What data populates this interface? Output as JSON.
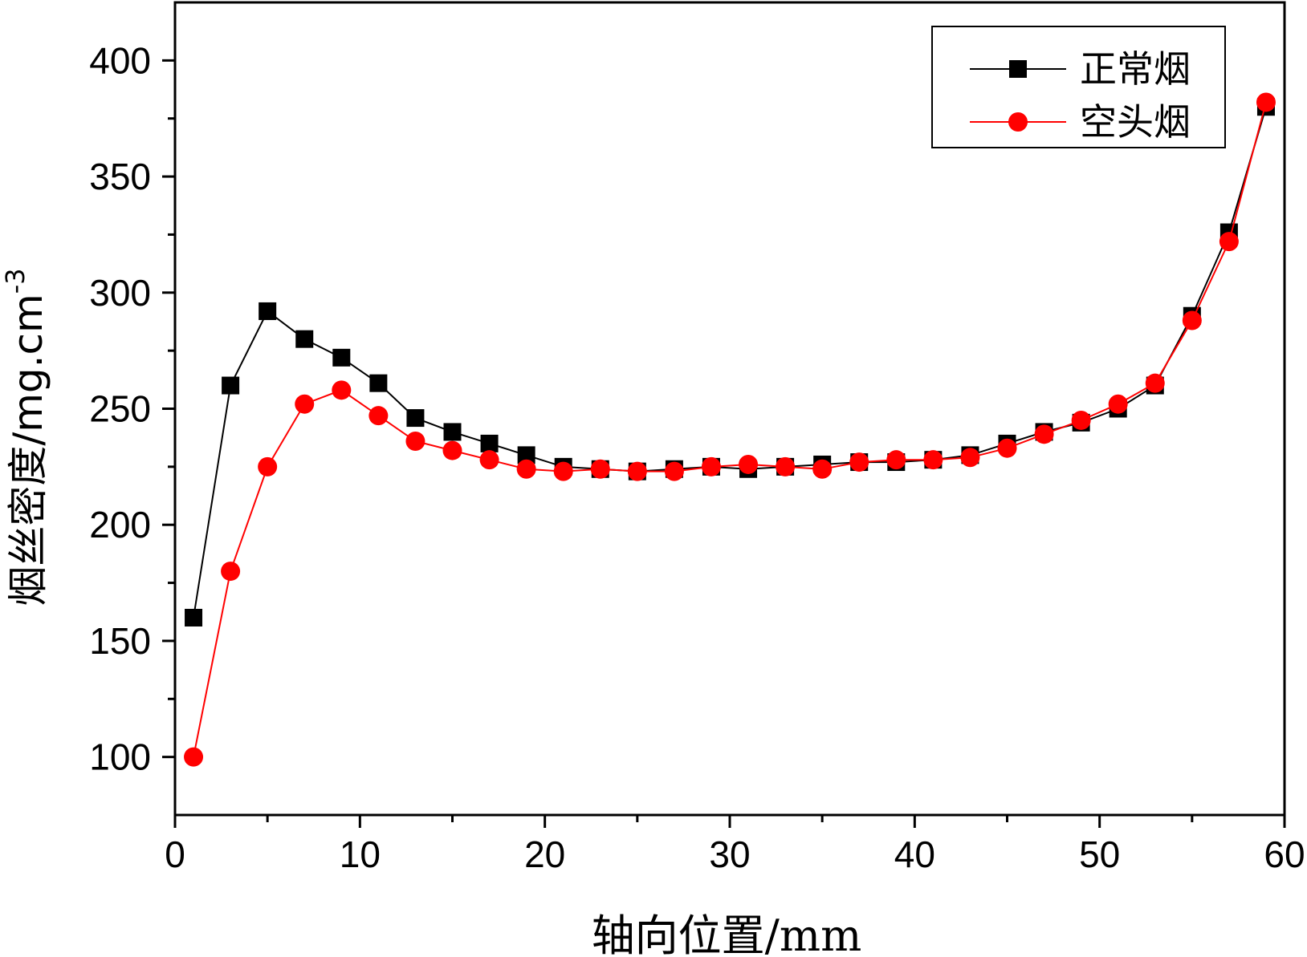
{
  "chart_data": {
    "type": "line",
    "title": "",
    "xlabel": "轴向位置/mm",
    "ylabel": "烟丝密度/mg.cm",
    "ylabel_superscript": "-3",
    "xlim": [
      0,
      60
    ],
    "ylim": [
      75,
      425
    ],
    "x_ticks": [
      0,
      10,
      20,
      30,
      40,
      50,
      60
    ],
    "x_tick_labels": [
      "0",
      "10",
      "20",
      "30",
      "40",
      "50",
      "60"
    ],
    "y_ticks": [
      100,
      150,
      200,
      250,
      300,
      350,
      400
    ],
    "y_tick_labels": [
      "100",
      "150",
      "200",
      "250",
      "300",
      "350",
      "400"
    ],
    "legend_position": "top-right",
    "x": [
      1,
      3,
      5,
      7,
      9,
      11,
      13,
      15,
      17,
      19,
      21,
      23,
      25,
      27,
      29,
      31,
      33,
      35,
      37,
      39,
      41,
      43,
      45,
      47,
      49,
      51,
      53,
      55,
      57,
      59
    ],
    "series": [
      {
        "name": "正常烟",
        "color": "#000000",
        "marker": "square",
        "values": [
          160,
          260,
          292,
          280,
          272,
          261,
          246,
          240,
          235,
          230,
          225,
          224,
          223,
          224,
          225,
          224,
          225,
          226,
          227,
          227,
          228,
          230,
          235,
          240,
          244,
          250,
          260,
          290,
          326,
          380
        ]
      },
      {
        "name": "空头烟",
        "color": "#ff0000",
        "marker": "circle",
        "values": [
          100,
          180,
          225,
          252,
          258,
          247,
          236,
          232,
          228,
          224,
          223,
          224,
          223,
          223,
          225,
          226,
          225,
          224,
          227,
          228,
          228,
          229,
          233,
          239,
          245,
          252,
          261,
          288,
          322,
          382
        ]
      }
    ]
  }
}
